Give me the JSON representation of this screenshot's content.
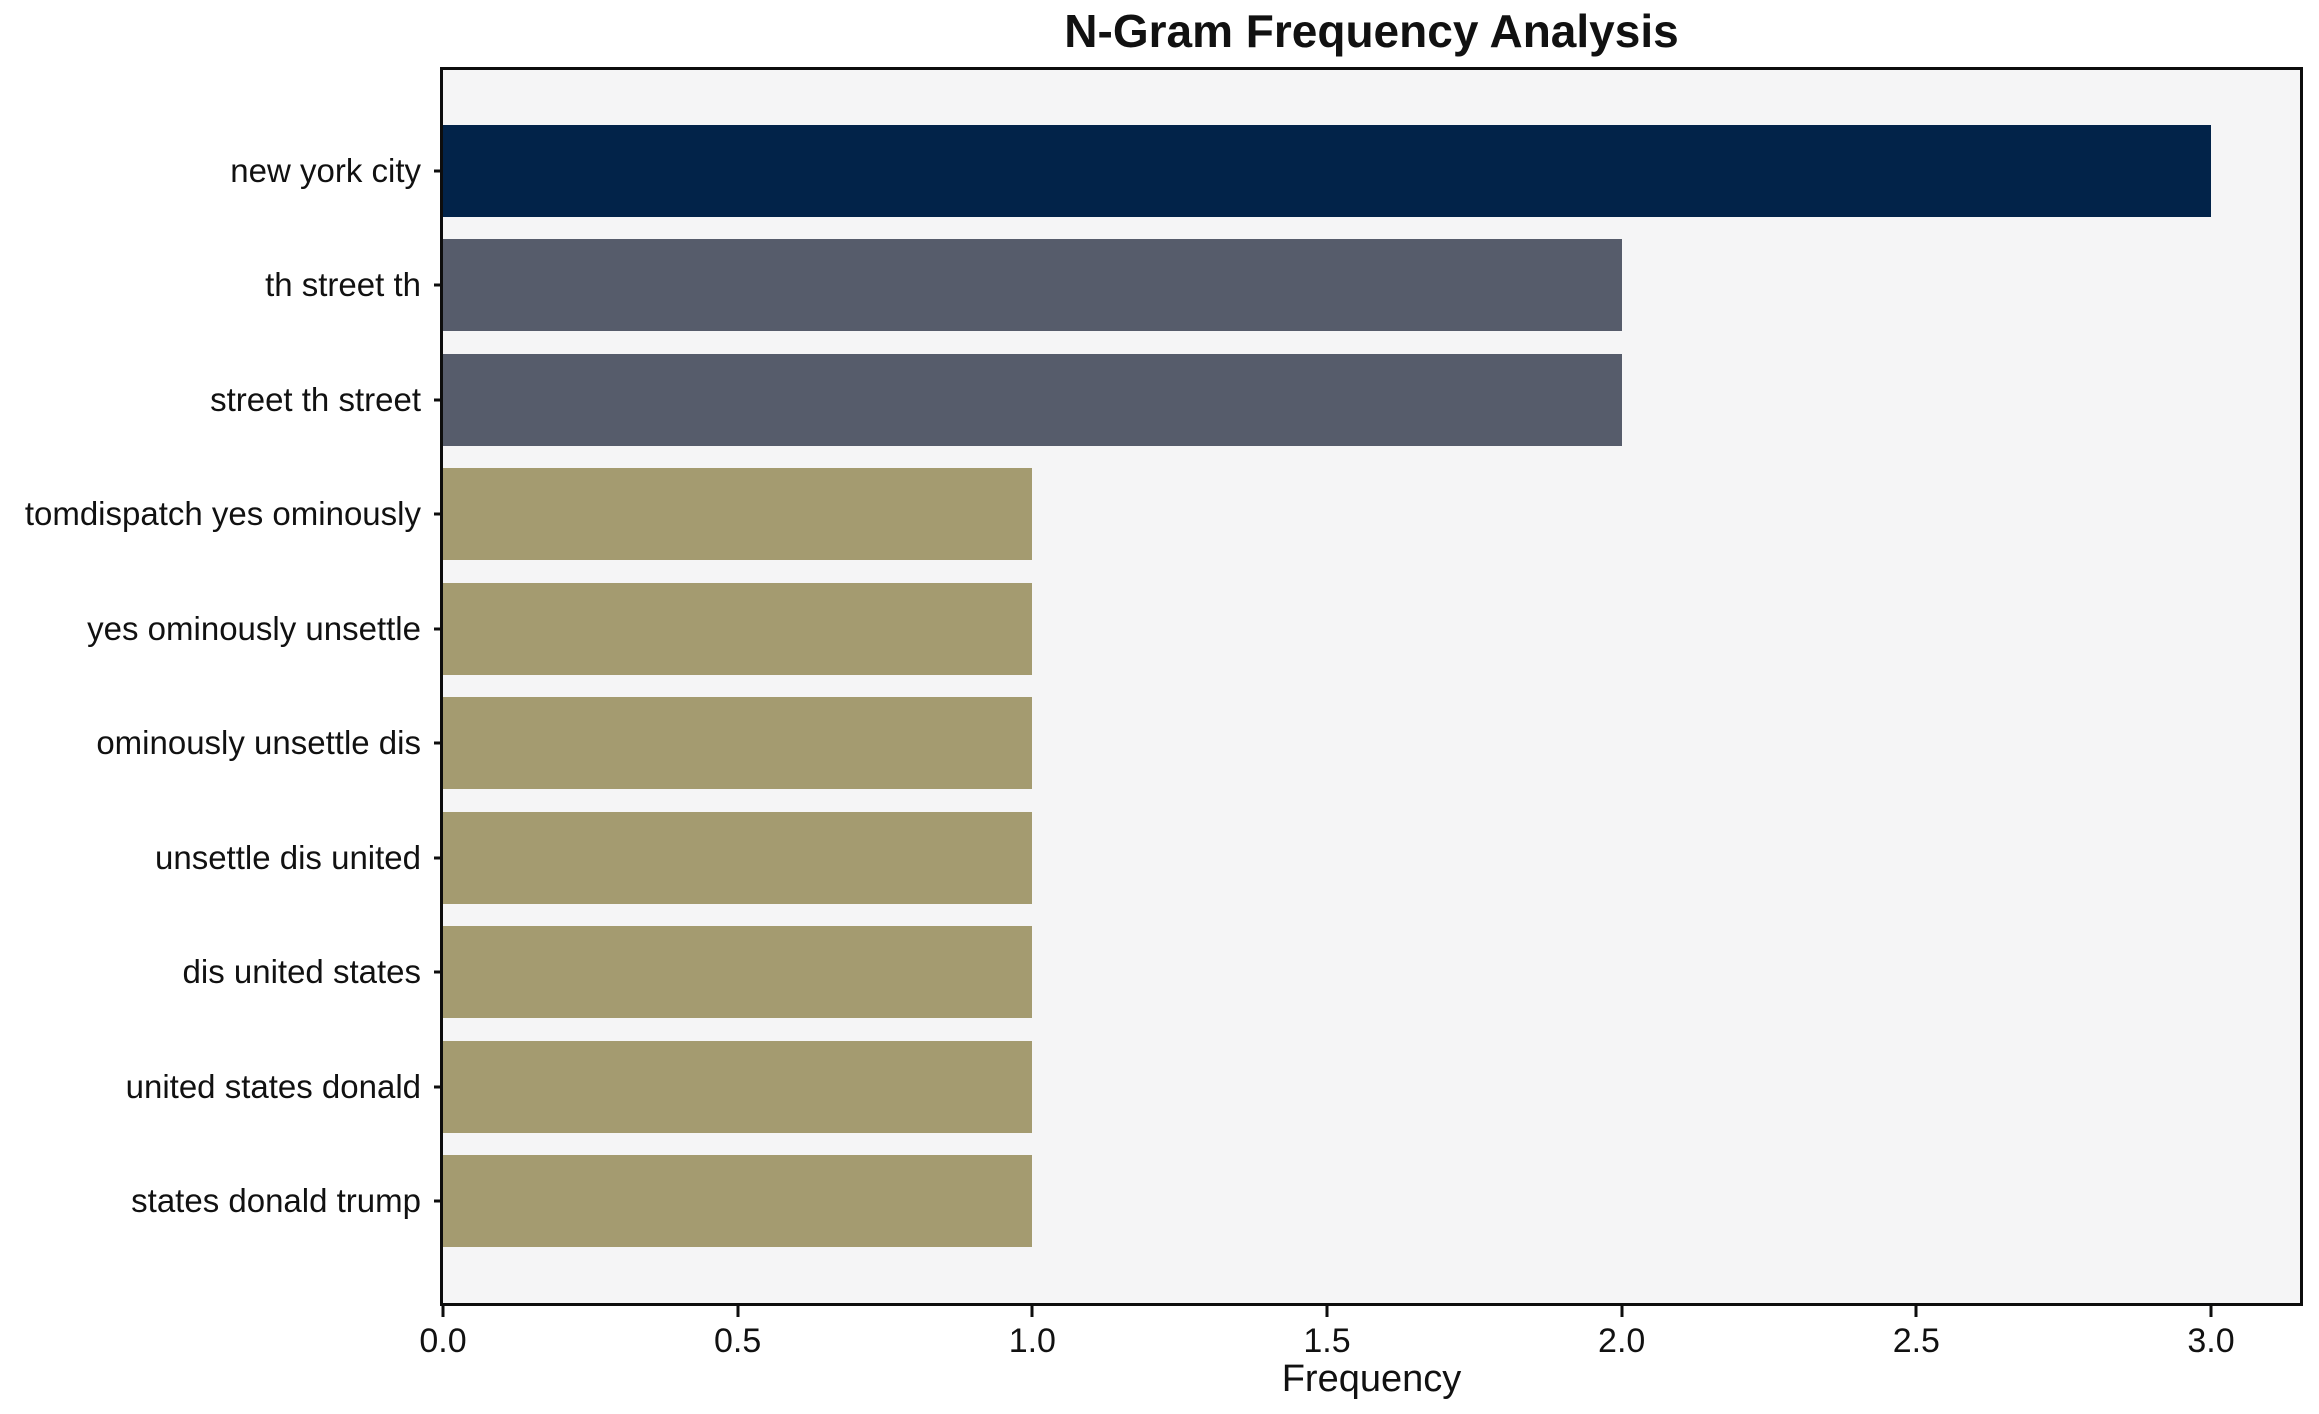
{
  "chart_data": {
    "type": "bar",
    "orientation": "horizontal",
    "title": "N-Gram Frequency Analysis",
    "xlabel": "Frequency",
    "ylabel": "",
    "categories": [
      "new york city",
      "th street th",
      "street th street",
      "tomdispatch yes ominously",
      "yes ominously unsettle",
      "ominously unsettle dis",
      "unsettle dis united",
      "dis united states",
      "united states donald",
      "states donald trump"
    ],
    "values": [
      3,
      2,
      2,
      1,
      1,
      1,
      1,
      1,
      1,
      1
    ],
    "bar_colors": [
      "#022349",
      "#565c6b",
      "#565c6b",
      "#a49b70",
      "#a49b70",
      "#a49b70",
      "#a49b70",
      "#a49b70",
      "#a49b70",
      "#a49b70"
    ],
    "xlim": [
      0,
      3.151
    ],
    "xticks": [
      {
        "label": "0.0",
        "value": 0
      },
      {
        "label": "0.5",
        "value": 0.5
      },
      {
        "label": "1.0",
        "value": 1
      },
      {
        "label": "1.5",
        "value": 1.5
      },
      {
        "label": "2.0",
        "value": 2
      },
      {
        "label": "2.5",
        "value": 2.5
      },
      {
        "label": "3.0",
        "value": 3
      }
    ],
    "grid": false,
    "legend": "none",
    "plot_background": "#f5f5f6",
    "figure_background": "#ffffff",
    "spine_color": "#0d0d0d"
  }
}
